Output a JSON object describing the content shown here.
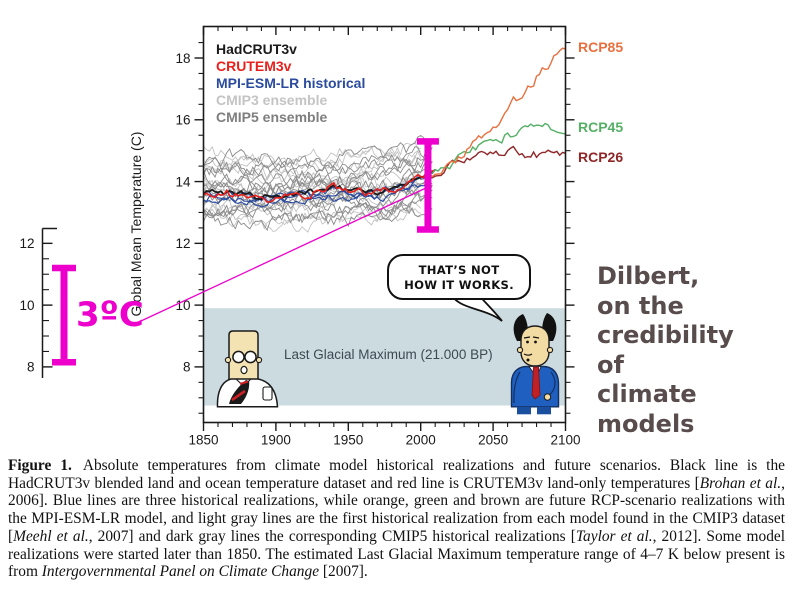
{
  "figure": {
    "side_note": "Dilbert,\non the\ncredibility\nof\nclimate\nmodels",
    "side_note_color": "#584c4c"
  },
  "legend": {
    "items": [
      {
        "label": "HadCRUT3v",
        "color": "#1a1a1a"
      },
      {
        "label": "CRUTEM3v",
        "color": "#e8211d"
      },
      {
        "label": "MPI-ESM-LR historical",
        "color": "#2b4b9e"
      },
      {
        "label": "CMIP3 ensemble",
        "color": "#c4c4c4"
      },
      {
        "label": "CMIP5 ensemble",
        "color": "#7e7e7e"
      }
    ]
  },
  "rcp_labels": [
    {
      "label": "RCP85",
      "color": "#e8703f"
    },
    {
      "label": "RCP45",
      "color": "#55b065"
    },
    {
      "label": "RCP26",
      "color": "#8e2727"
    }
  ],
  "annotation": {
    "label": "3ºC",
    "color": "#ee00cc",
    "detached_axis_ticks": [
      8,
      10,
      12
    ],
    "left_bracket": {
      "from": 8.15,
      "to": 11.2
    },
    "chart_bracket": {
      "year": 2005,
      "from": 12.45,
      "to": 15.3
    }
  },
  "comic": {
    "bubble_line1": "THAT’S NOT",
    "bubble_line2": "HOW IT WORKS.",
    "lgm_label": "Last Glacial Maximum (21.000 BP)"
  },
  "chart_data": {
    "type": "line",
    "title": "",
    "xlabel": "",
    "ylabel": "Global Mean Temperature (C)",
    "xlim": [
      1850,
      2100
    ],
    "ylim": [
      6.2,
      19.02
    ],
    "x_ticks": [
      1850,
      1900,
      1950,
      2000,
      2050,
      2100
    ],
    "x_minor_step": 10,
    "y_ticks": [
      8,
      10,
      12,
      14,
      16,
      18
    ],
    "y_minor_step": 0.5,
    "grid": false,
    "legend_position": "top-left",
    "lgm_band": {
      "label": "Last Glacial Maximum (21.000 BP)",
      "from": 6.75,
      "to": 9.9,
      "color": "#ccdbe0"
    },
    "series": [
      {
        "name": "MPI-ESM-LR historical r1",
        "color": "#2b4b9e",
        "width": 1.2,
        "jitter": 0.11,
        "points": [
          [
            1850,
            13.5
          ],
          [
            1870,
            13.45
          ],
          [
            1890,
            13.4
          ],
          [
            1910,
            13.45
          ],
          [
            1930,
            13.55
          ],
          [
            1950,
            13.6
          ],
          [
            1970,
            13.55
          ],
          [
            1985,
            13.7
          ],
          [
            1995,
            13.9
          ],
          [
            2005,
            14.1
          ]
        ]
      },
      {
        "name": "MPI-ESM-LR historical r2",
        "color": "#2b4b9e",
        "width": 1.2,
        "jitter": 0.11,
        "points": [
          [
            1850,
            13.35
          ],
          [
            1870,
            13.4
          ],
          [
            1890,
            13.3
          ],
          [
            1910,
            13.4
          ],
          [
            1930,
            13.45
          ],
          [
            1950,
            13.5
          ],
          [
            1970,
            13.45
          ],
          [
            1985,
            13.6
          ],
          [
            1995,
            13.75
          ],
          [
            2005,
            14.0
          ]
        ]
      },
      {
        "name": "MPI-ESM-LR historical r3",
        "color": "#2b4b9e",
        "width": 1.2,
        "jitter": 0.11,
        "points": [
          [
            1850,
            13.62
          ],
          [
            1870,
            13.55
          ],
          [
            1890,
            13.5
          ],
          [
            1910,
            13.55
          ],
          [
            1930,
            13.65
          ],
          [
            1950,
            13.68
          ],
          [
            1970,
            13.6
          ],
          [
            1985,
            13.75
          ],
          [
            1995,
            13.95
          ],
          [
            2005,
            14.15
          ]
        ]
      },
      {
        "name": "HadCRUT3v",
        "color": "#1a1a1a",
        "width": 1.8,
        "jitter": 0.09,
        "points": [
          [
            1850,
            13.65
          ],
          [
            1860,
            13.7
          ],
          [
            1877,
            13.6
          ],
          [
            1890,
            13.5
          ],
          [
            1905,
            13.55
          ],
          [
            1915,
            13.6
          ],
          [
            1930,
            13.68
          ],
          [
            1941,
            13.8
          ],
          [
            1950,
            13.72
          ],
          [
            1960,
            13.7
          ],
          [
            1972,
            13.68
          ],
          [
            1980,
            13.78
          ],
          [
            1990,
            13.9
          ],
          [
            1998,
            14.1
          ],
          [
            2004,
            14.2
          ],
          [
            2010,
            14.3
          ]
        ]
      },
      {
        "name": "CRUTEM3v",
        "color": "#e8211d",
        "width": 1.6,
        "jitter": 0.12,
        "points": [
          [
            1850,
            13.6
          ],
          [
            1865,
            13.65
          ],
          [
            1880,
            13.55
          ],
          [
            1895,
            13.45
          ],
          [
            1910,
            13.5
          ],
          [
            1925,
            13.6
          ],
          [
            1941,
            13.85
          ],
          [
            1952,
            13.7
          ],
          [
            1965,
            13.65
          ],
          [
            1978,
            13.72
          ],
          [
            1988,
            13.9
          ],
          [
            1998,
            14.15
          ],
          [
            2005,
            14.3
          ],
          [
            2010,
            14.45
          ]
        ]
      },
      {
        "name": "RCP26",
        "color": "#8e2727",
        "width": 1.4,
        "jitter": 0.13,
        "points": [
          [
            2006,
            14.2
          ],
          [
            2012,
            14.35
          ],
          [
            2020,
            14.5
          ],
          [
            2030,
            14.75
          ],
          [
            2040,
            14.9
          ],
          [
            2050,
            14.98
          ],
          [
            2060,
            15.0
          ],
          [
            2070,
            14.92
          ],
          [
            2080,
            14.88
          ],
          [
            2090,
            14.85
          ],
          [
            2100,
            14.8
          ]
        ]
      },
      {
        "name": "RCP45",
        "color": "#55b065",
        "width": 1.4,
        "jitter": 0.13,
        "points": [
          [
            2006,
            14.25
          ],
          [
            2012,
            14.4
          ],
          [
            2020,
            14.55
          ],
          [
            2030,
            14.85
          ],
          [
            2040,
            15.1
          ],
          [
            2050,
            15.3
          ],
          [
            2060,
            15.5
          ],
          [
            2070,
            15.62
          ],
          [
            2080,
            15.7
          ],
          [
            2090,
            15.72
          ],
          [
            2100,
            15.75
          ]
        ]
      },
      {
        "name": "RCP85",
        "color": "#e8703f",
        "width": 1.4,
        "jitter": 0.14,
        "points": [
          [
            2006,
            14.25
          ],
          [
            2012,
            14.4
          ],
          [
            2020,
            14.6
          ],
          [
            2030,
            14.95
          ],
          [
            2040,
            15.35
          ],
          [
            2050,
            15.8
          ],
          [
            2060,
            16.3
          ],
          [
            2070,
            16.9
          ],
          [
            2080,
            17.4
          ],
          [
            2090,
            17.9
          ],
          [
            2100,
            18.35
          ]
        ]
      }
    ],
    "ensembles": [
      {
        "name": "CMIP3 ensemble",
        "color": "#c3c3c3",
        "count": 13,
        "spread": 1.15,
        "jitter": 0.2,
        "width": 0.9,
        "base": [
          [
            1850,
            13.8
          ],
          [
            1900,
            13.72
          ],
          [
            1950,
            13.8
          ],
          [
            1980,
            13.85
          ],
          [
            2000,
            14.05
          ]
        ]
      },
      {
        "name": "CMIP5 ensemble",
        "color": "#8a8a8a",
        "count": 13,
        "spread": 0.95,
        "jitter": 0.2,
        "width": 0.9,
        "base": [
          [
            1850,
            13.72
          ],
          [
            1900,
            13.68
          ],
          [
            1950,
            13.76
          ],
          [
            1980,
            13.85
          ],
          [
            2008,
            14.25
          ]
        ]
      }
    ]
  },
  "caption": {
    "segments": [
      {
        "text": "Figure 1.",
        "bold": true,
        "gap": true
      },
      {
        "text": "Absolute temperatures from climate model historical realizations and future scenarios. Black line is the HadCRUT3v blended land and ocean temperature dataset and red line is CRUTEM3v land-only temperatures ["
      },
      {
        "text": "Brohan et al.",
        "italic": true
      },
      {
        "text": ", 2006]. Blue lines are three historical realizations, while orange, green and brown are future RCP-scenario realizations with the MPI-ESM-LR model, and light gray lines are the first historical realization from each model found in the CMIP3 dataset ["
      },
      {
        "text": "Meehl et al.",
        "italic": true
      },
      {
        "text": ", 2007] and dark gray lines the corresponding CMIP5 historical realizations ["
      },
      {
        "text": "Taylor et al.",
        "italic": true
      },
      {
        "text": ", 2012]. Some model realizations were started later than 1850. The estimated Last Glacial Maximum temperature range of 4–7 K below present is from "
      },
      {
        "text": "Intergovernmental Panel on Climate Change",
        "italic": true
      },
      {
        "text": " [2007]."
      }
    ]
  }
}
